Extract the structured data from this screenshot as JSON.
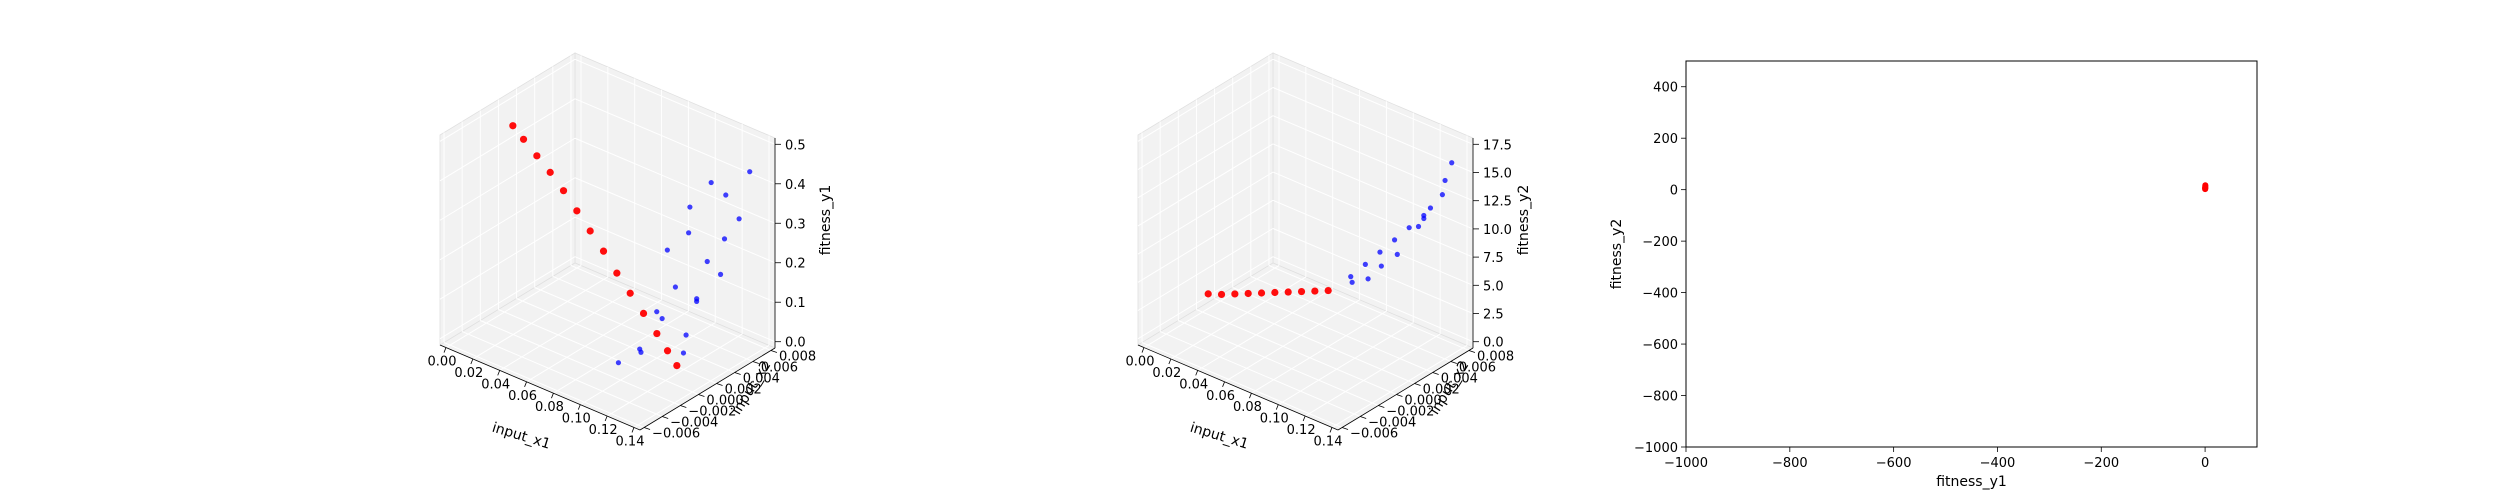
{
  "chart_data": [
    {
      "type": "scatter",
      "projection": "3d",
      "xlabel": "input_x1",
      "ylabel": "input_x2",
      "zlabel": "fitness_y1",
      "xlim": [
        -0.005,
        0.145
      ],
      "ylim": [
        -0.008,
        0.009
      ],
      "zlim": [
        -0.03,
        0.55
      ],
      "xticks": [
        "0.00",
        "0.02",
        "0.04",
        "0.06",
        "0.08",
        "0.10",
        "0.12",
        "0.14"
      ],
      "yticks": [
        "−0.006",
        "−0.004",
        "−0.002",
        "0.000",
        "0.002",
        "0.004",
        "0.006",
        "0.008"
      ],
      "zticks": [
        "0.0",
        "0.1",
        "0.2",
        "0.3",
        "0.4",
        "0.5"
      ],
      "grid": true,
      "series": [
        {
          "color": "#ff0000",
          "points": [
            [
              0.002,
              0.0,
              0.48
            ],
            [
              0.01,
              0.0,
              0.455
            ],
            [
              0.02,
              0.0,
              0.425
            ],
            [
              0.03,
              0.0,
              0.395
            ],
            [
              0.04,
              0.0,
              0.36
            ],
            [
              0.05,
              0.0,
              0.32
            ],
            [
              0.06,
              0.0,
              0.28
            ],
            [
              0.07,
              0.0,
              0.24
            ],
            [
              0.08,
              0.0,
              0.195
            ],
            [
              0.09,
              0.0,
              0.155
            ],
            [
              0.1,
              0.0,
              0.115
            ],
            [
              0.11,
              0.0,
              0.075
            ],
            [
              0.118,
              0.0,
              0.04
            ],
            [
              0.125,
              0.0,
              0.01
            ]
          ]
        },
        {
          "color": "#0000ff",
          "points": [
            [
              0.1,
              0.003,
              0.25
            ],
            [
              0.105,
              0.005,
              0.35
            ],
            [
              0.11,
              0.004,
              0.3
            ],
            [
              0.115,
              0.006,
              0.42
            ],
            [
              0.12,
              0.007,
              0.38
            ],
            [
              0.112,
              0.002,
              0.18
            ],
            [
              0.118,
              0.005,
              0.22
            ],
            [
              0.122,
              0.003,
              0.15
            ],
            [
              0.108,
              0.001,
              0.1
            ],
            [
              0.125,
              0.006,
              0.28
            ],
            [
              0.13,
              0.007,
              0.33
            ],
            [
              0.116,
              0.004,
              0.12
            ],
            [
              0.12,
              0.002,
              0.06
            ],
            [
              0.124,
              0.001,
              0.03
            ],
            [
              0.11,
              -0.002,
              0.05
            ],
            [
              0.105,
              -0.004,
              0.04
            ],
            [
              0.115,
              -0.003,
              0.08
            ],
            [
              0.128,
              0.005,
              0.2
            ],
            [
              0.132,
              0.008,
              0.45
            ],
            [
              0.098,
              0.002,
              0.09
            ]
          ]
        }
      ]
    },
    {
      "type": "scatter",
      "projection": "3d",
      "xlabel": "input_x1",
      "ylabel": "input_x2",
      "zlabel": "fitness_y2",
      "xlim": [
        -0.005,
        0.145
      ],
      "ylim": [
        -0.008,
        0.009
      ],
      "zlim": [
        -1.0,
        19.5
      ],
      "xticks": [
        "0.00",
        "0.02",
        "0.04",
        "0.06",
        "0.08",
        "0.10",
        "0.12",
        "0.14"
      ],
      "yticks": [
        "−0.006",
        "−0.004",
        "−0.002",
        "0.000",
        "0.002",
        "0.004",
        "0.006",
        "0.008"
      ],
      "zticks": [
        "0.0",
        "2.5",
        "5.0",
        "7.5",
        "10.0",
        "12.5",
        "15.0",
        "17.5"
      ],
      "grid": true,
      "series": [
        {
          "color": "#ff0000",
          "points": [
            [
              0.0,
              0.0,
              0.5
            ],
            [
              0.01,
              0.0,
              1.0
            ],
            [
              0.02,
              0.0,
              1.6
            ],
            [
              0.03,
              0.0,
              2.2
            ],
            [
              0.04,
              0.0,
              2.8
            ],
            [
              0.05,
              0.0,
              3.4
            ],
            [
              0.06,
              0.0,
              4.0
            ],
            [
              0.07,
              0.0,
              4.6
            ],
            [
              0.08,
              0.0,
              5.2
            ],
            [
              0.09,
              0.0,
              5.8
            ]
          ]
        },
        {
          "color": "#0000ff",
          "points": [
            [
              0.095,
              0.002,
              6.5
            ],
            [
              0.1,
              0.003,
              7.5
            ],
            [
              0.105,
              0.004,
              8.5
            ],
            [
              0.11,
              0.005,
              9.5
            ],
            [
              0.115,
              0.006,
              10.5
            ],
            [
              0.12,
              0.007,
              11.5
            ],
            [
              0.125,
              0.007,
              12.5
            ],
            [
              0.128,
              0.008,
              13.5
            ],
            [
              0.118,
              0.004,
              9.0
            ],
            [
              0.108,
              0.002,
              7.0
            ],
            [
              0.122,
              0.006,
              11.0
            ],
            [
              0.13,
              0.008,
              15.0
            ],
            [
              0.112,
              0.003,
              8.0
            ],
            [
              0.126,
              0.006,
              12.0
            ],
            [
              0.135,
              0.008,
              17.0
            ],
            [
              0.102,
              0.001,
              6.8
            ]
          ]
        }
      ]
    },
    {
      "type": "scatter",
      "xlabel": "fitness_y1",
      "ylabel": "fitness_y2",
      "xlim": [
        -1000,
        100
      ],
      "ylim": [
        -1000,
        500
      ],
      "xticks": [
        -1000,
        -800,
        -600,
        -400,
        -200,
        0
      ],
      "yticks": [
        -1000,
        -800,
        -600,
        -400,
        -200,
        0,
        200,
        400
      ],
      "xtick_labels": [
        "−1000",
        "−800",
        "−600",
        "−400",
        "−200",
        "0"
      ],
      "ytick_labels": [
        "−1000",
        "−800",
        "−600",
        "−400",
        "−200",
        "0",
        "200",
        "400"
      ],
      "grid": false,
      "series": [
        {
          "color": "#ff0000",
          "points": [
            [
              0.1,
              2
            ],
            [
              0.2,
              6
            ],
            [
              0.3,
              10
            ],
            [
              0.4,
              14
            ],
            [
              0.45,
              17
            ],
            [
              0.35,
              4
            ],
            [
              0.25,
              8
            ]
          ]
        }
      ]
    }
  ]
}
